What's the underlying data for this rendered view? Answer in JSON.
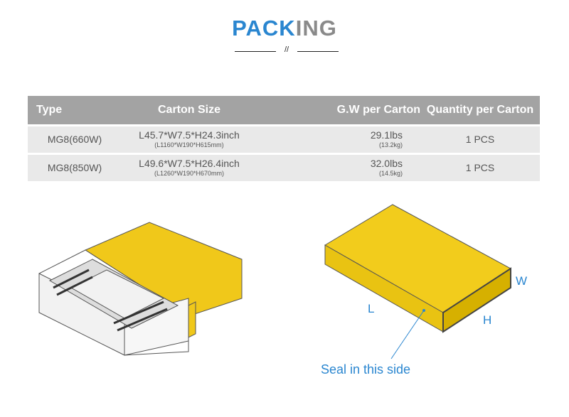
{
  "title": {
    "part1": "PACK",
    "part2": "ING",
    "separator": "//"
  },
  "table": {
    "headers": [
      "Type",
      "Carton Size",
      "G.W per Carton",
      "Quantity per Carton"
    ],
    "rows": [
      {
        "type": "MG8(660W)",
        "size_in": "L45.7*W7.5*H24.3inch",
        "size_mm": "(L1160*W190*H615mm)",
        "weight_lbs": "29.1lbs",
        "weight_kg": "(13.2kg)",
        "qty": "1 PCS"
      },
      {
        "type": "MG8(850W)",
        "size_in": "L49.6*W7.5*H26.4inch",
        "size_mm": "(L1260*W190*H670mm)",
        "weight_lbs": "32.0lbs",
        "weight_kg": "(14.5kg)",
        "qty": "1 PCS"
      }
    ]
  },
  "diagram": {
    "label_l": "L",
    "label_w": "W",
    "label_h": "H",
    "seal_note": "Seal in this side"
  },
  "colors": {
    "accent": "#2a86d0",
    "carton": "#f0c81a",
    "header_bg": "#a3a3a3"
  }
}
